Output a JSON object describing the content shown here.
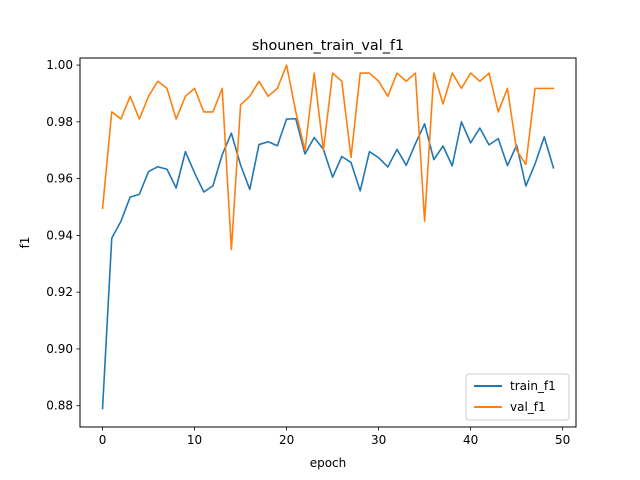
{
  "chart_data": {
    "type": "line",
    "title": "shounen_train_val_f1",
    "xlabel": "epoch",
    "ylabel": "f1",
    "xlim": [
      -2.45,
      51.45
    ],
    "ylim": [
      0.8725,
      1.0025
    ],
    "xticks": [
      0,
      10,
      20,
      30,
      40,
      50
    ],
    "yticks": [
      0.88,
      0.9,
      0.92,
      0.94,
      0.96,
      0.98,
      1.0
    ],
    "xtick_labels": [
      "0",
      "10",
      "20",
      "30",
      "40",
      "50"
    ],
    "ytick_labels": [
      "0.88",
      "0.90",
      "0.92",
      "0.94",
      "0.96",
      "0.98",
      "1.00"
    ],
    "legend_position": "bottom-right",
    "grid": false,
    "series": [
      {
        "name": "train_f1",
        "color": "#1f77b4",
        "x": [
          0,
          1,
          2,
          3,
          4,
          5,
          6,
          7,
          8,
          9,
          10,
          11,
          12,
          13,
          14,
          15,
          16,
          17,
          18,
          19,
          20,
          21,
          22,
          23,
          24,
          25,
          26,
          27,
          28,
          29,
          30,
          31,
          32,
          33,
          34,
          35,
          36,
          37,
          38,
          39,
          40,
          41,
          42,
          43,
          44,
          45,
          46,
          47,
          48,
          49
        ],
        "y": [
          0.879,
          0.939,
          0.945,
          0.9535,
          0.9545,
          0.9625,
          0.9642,
          0.9633,
          0.9567,
          0.9695,
          0.962,
          0.9553,
          0.9575,
          0.9684,
          0.976,
          0.9648,
          0.9562,
          0.972,
          0.973,
          0.9716,
          0.981,
          0.9811,
          0.9687,
          0.9745,
          0.9703,
          0.9605,
          0.9678,
          0.9657,
          0.9557,
          0.9695,
          0.9674,
          0.9641,
          0.9703,
          0.9647,
          0.9723,
          0.9793,
          0.9667,
          0.9715,
          0.9645,
          0.98,
          0.9726,
          0.9778,
          0.9719,
          0.9741,
          0.9646,
          0.9718,
          0.9574,
          0.9652,
          0.9747,
          0.9638
        ]
      },
      {
        "name": "val_f1",
        "color": "#ff7f0e",
        "x": [
          0,
          1,
          2,
          3,
          4,
          5,
          6,
          7,
          8,
          9,
          10,
          11,
          12,
          13,
          14,
          15,
          16,
          17,
          18,
          19,
          20,
          21,
          22,
          23,
          24,
          25,
          26,
          27,
          28,
          29,
          30,
          31,
          32,
          33,
          34,
          35,
          36,
          37,
          38,
          39,
          40,
          41,
          42,
          43,
          44,
          45,
          46,
          47,
          48,
          49
        ],
        "y": [
          0.9495,
          0.9835,
          0.981,
          0.989,
          0.981,
          0.989,
          0.9943,
          0.9918,
          0.981,
          0.989,
          0.9918,
          0.9835,
          0.9835,
          0.9918,
          0.935,
          0.986,
          0.989,
          0.9943,
          0.989,
          0.9918,
          1.0,
          0.9835,
          0.97,
          0.9972,
          0.97,
          0.9972,
          0.9943,
          0.9675,
          0.9972,
          0.9972,
          0.9943,
          0.989,
          0.9972,
          0.9943,
          0.9972,
          0.945,
          0.9972,
          0.9863,
          0.9972,
          0.9918,
          0.9972,
          0.9943,
          0.9972,
          0.9835,
          0.9918,
          0.97,
          0.965,
          0.9918,
          0.9918,
          0.9918
        ]
      }
    ]
  }
}
